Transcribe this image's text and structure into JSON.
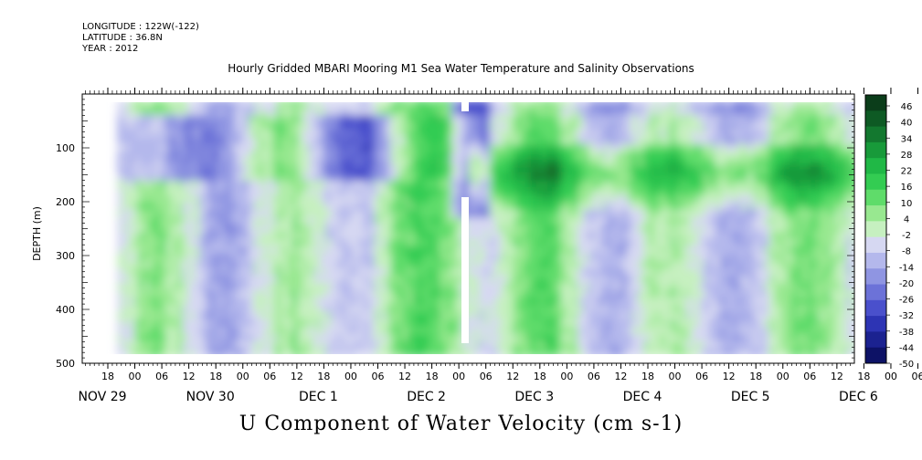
{
  "header": {
    "longitude": "LONGITUDE : 122W(-122)",
    "latitude": "LATITUDE : 36.8N",
    "year": "YEAR : 2012"
  },
  "chart_data": {
    "type": "heatmap",
    "title": "Hourly Gridded MBARI Mooring M1 Sea Water Temperature and Salinity Observations",
    "variable_title": "U Component of Water Velocity (cm s-1)",
    "ylabel": "DEPTH (m)",
    "xlabel": "",
    "ylim": [
      500,
      0
    ],
    "y_ticks": [
      100,
      200,
      300,
      400,
      500
    ],
    "hour_tick_labels": [
      "18",
      "00",
      "06",
      "12",
      "18",
      "00",
      "06",
      "12",
      "18",
      "00",
      "06",
      "12",
      "18",
      "00",
      "06",
      "12",
      "18",
      "00",
      "06",
      "12",
      "18",
      "00",
      "06",
      "12",
      "18",
      "00",
      "06",
      "12",
      "18",
      "00",
      "06",
      "12"
    ],
    "day_labels": [
      "NOV 29",
      "NOV 30",
      "DEC  1",
      "DEC  2",
      "DEC  3",
      "DEC  4",
      "DEC  5",
      "DEC  6"
    ],
    "colorbar": {
      "min": -50,
      "max": 50,
      "labels": [
        "46",
        "40",
        "34",
        "28",
        "22",
        "16",
        "10",
        "4",
        "-2",
        "-8",
        "-14",
        "-20",
        "-26",
        "-32",
        "-38",
        "-44",
        "-50"
      ],
      "colors_top_to_bottom": [
        "#0b3d1a",
        "#0e5a24",
        "#13782f",
        "#189a3a",
        "#20b846",
        "#33cc52",
        "#5fdc6a",
        "#98e890",
        "#c6f0c0",
        "#d6d8f2",
        "#b4b8ec",
        "#8f95e2",
        "#6c72d8",
        "#4a50cc",
        "#2d34b4",
        "#1b2290",
        "#0d1266"
      ]
    },
    "grid": false,
    "note_regions": [
      {
        "days_from_start": [
          0.0,
          1.5
        ],
        "depth": [
          20,
          160
        ],
        "sign": "negative"
      },
      {
        "days_from_start": [
          3.5,
          7.9
        ],
        "depth": [
          100,
          200
        ],
        "sign": "positive",
        "peak": 46
      }
    ]
  }
}
